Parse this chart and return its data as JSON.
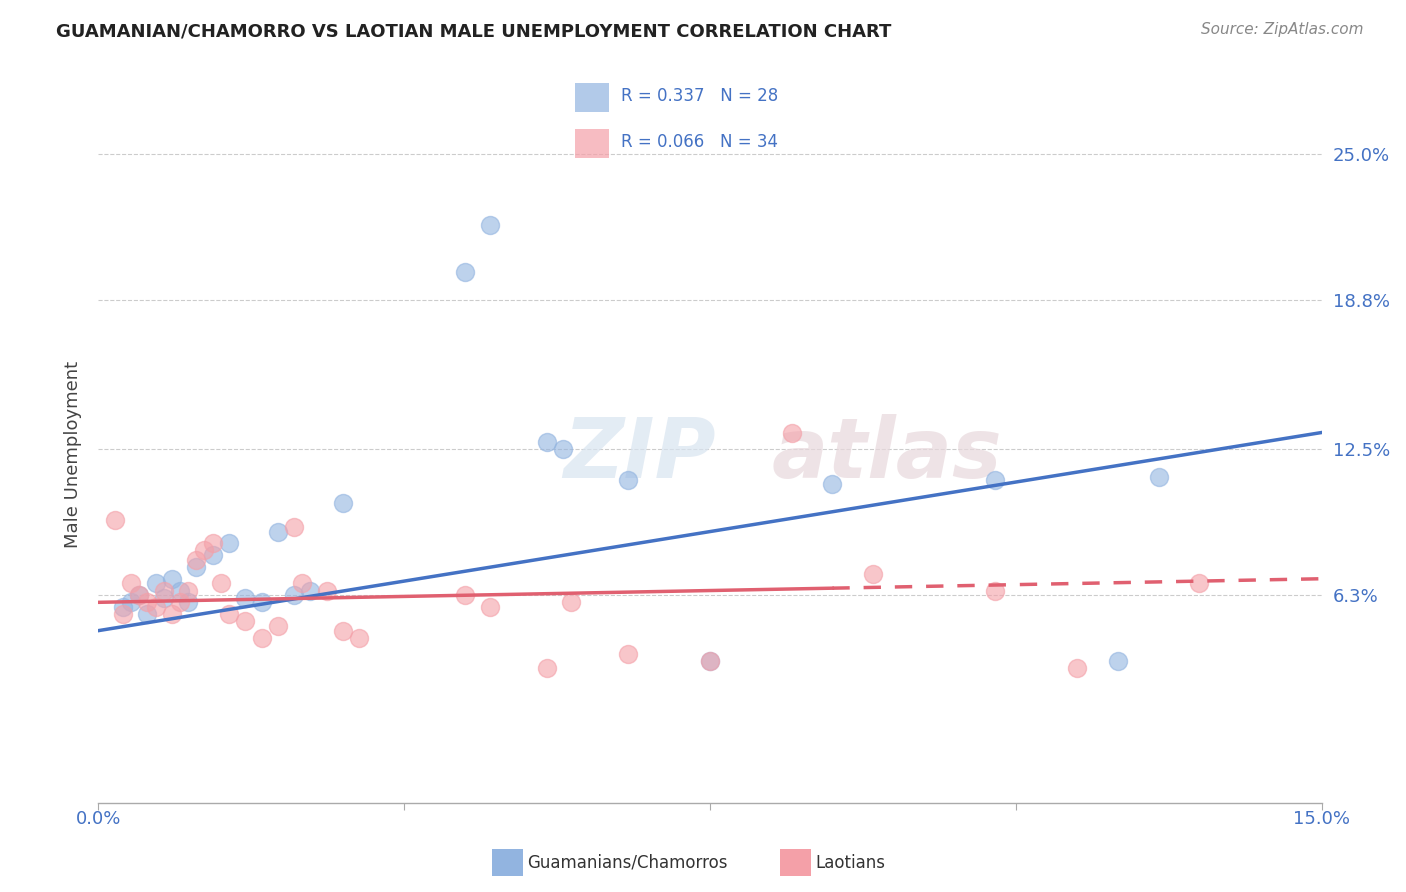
{
  "title": "GUAMANIAN/CHAMORRO VS LAOTIAN MALE UNEMPLOYMENT CORRELATION CHART",
  "source": "Source: ZipAtlas.com",
  "ylabel": "Male Unemployment",
  "ytick_values": [
    6.3,
    12.5,
    18.8,
    25.0
  ],
  "xmin": 0.0,
  "xmax": 15.0,
  "ymin": -2.5,
  "ymax": 27.0,
  "legend_r1": "0.337",
  "legend_n1": "28",
  "legend_r2": "0.066",
  "legend_n2": "34",
  "color_blue": "#92B4E0",
  "color_blue_line": "#4472C4",
  "color_pink": "#F4A0A8",
  "color_pink_line": "#E06070",
  "color_label_blue": "#4472C4",
  "watermark_zip": "ZIP",
  "watermark_atlas": "atlas",
  "blue_points": [
    [
      0.3,
      5.8
    ],
    [
      0.4,
      6.0
    ],
    [
      0.5,
      6.3
    ],
    [
      0.6,
      5.5
    ],
    [
      0.7,
      6.8
    ],
    [
      0.8,
      6.2
    ],
    [
      0.9,
      7.0
    ],
    [
      1.0,
      6.5
    ],
    [
      1.1,
      6.0
    ],
    [
      1.2,
      7.5
    ],
    [
      1.4,
      8.0
    ],
    [
      1.6,
      8.5
    ],
    [
      1.8,
      6.2
    ],
    [
      2.0,
      6.0
    ],
    [
      2.2,
      9.0
    ],
    [
      2.4,
      6.3
    ],
    [
      2.6,
      6.5
    ],
    [
      3.0,
      10.2
    ],
    [
      4.5,
      20.0
    ],
    [
      4.8,
      22.0
    ],
    [
      5.5,
      12.8
    ],
    [
      5.7,
      12.5
    ],
    [
      6.5,
      11.2
    ],
    [
      7.5,
      3.5
    ],
    [
      9.0,
      11.0
    ],
    [
      11.0,
      11.2
    ],
    [
      12.5,
      3.5
    ],
    [
      13.0,
      11.3
    ]
  ],
  "pink_points": [
    [
      0.2,
      9.5
    ],
    [
      0.3,
      5.5
    ],
    [
      0.4,
      6.8
    ],
    [
      0.5,
      6.3
    ],
    [
      0.6,
      6.0
    ],
    [
      0.7,
      5.8
    ],
    [
      0.8,
      6.5
    ],
    [
      0.9,
      5.5
    ],
    [
      1.0,
      6.0
    ],
    [
      1.1,
      6.5
    ],
    [
      1.2,
      7.8
    ],
    [
      1.3,
      8.2
    ],
    [
      1.4,
      8.5
    ],
    [
      1.5,
      6.8
    ],
    [
      1.6,
      5.5
    ],
    [
      1.8,
      5.2
    ],
    [
      2.0,
      4.5
    ],
    [
      2.2,
      5.0
    ],
    [
      2.4,
      9.2
    ],
    [
      2.5,
      6.8
    ],
    [
      2.8,
      6.5
    ],
    [
      3.0,
      4.8
    ],
    [
      3.2,
      4.5
    ],
    [
      4.5,
      6.3
    ],
    [
      4.8,
      5.8
    ],
    [
      5.5,
      3.2
    ],
    [
      5.8,
      6.0
    ],
    [
      6.5,
      3.8
    ],
    [
      7.5,
      3.5
    ],
    [
      8.5,
      13.2
    ],
    [
      9.5,
      7.2
    ],
    [
      11.0,
      6.5
    ],
    [
      12.0,
      3.2
    ],
    [
      13.5,
      6.8
    ]
  ],
  "blue_line_x": [
    0.0,
    15.0
  ],
  "blue_line_y": [
    4.8,
    13.2
  ],
  "pink_line_x": [
    0.0,
    15.0
  ],
  "pink_line_y": [
    6.0,
    7.0
  ]
}
